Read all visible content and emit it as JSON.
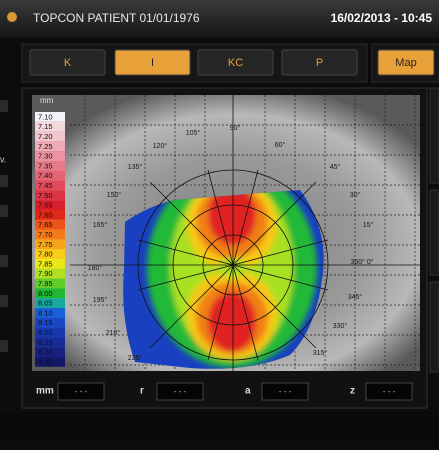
{
  "header": {
    "title": "TOPCON PATIENT 01/01/1976",
    "datetime": "16/02/2013 - 10:45"
  },
  "tabs": [
    "K",
    "I",
    "KC",
    "P"
  ],
  "view_button": "Map",
  "side_label": "v.",
  "scale": {
    "unit": "mm",
    "steps": [
      {
        "label": "7.10",
        "color": "#f4f4f8"
      },
      {
        "label": "7.15",
        "color": "#f4d8dc"
      },
      {
        "label": "7.20",
        "color": "#f2c4cc"
      },
      {
        "label": "7.25",
        "color": "#f0aab6"
      },
      {
        "label": "7.30",
        "color": "#ec92a2"
      },
      {
        "label": "7.35",
        "color": "#e87a8c"
      },
      {
        "label": "7.40",
        "color": "#e46476"
      },
      {
        "label": "7.45",
        "color": "#e04c5e"
      },
      {
        "label": "7.50",
        "color": "#dc3444"
      },
      {
        "label": "7.55",
        "color": "#d8202c"
      },
      {
        "label": "7.60",
        "color": "#e02818"
      },
      {
        "label": "7.65",
        "color": "#ec5418"
      },
      {
        "label": "7.70",
        "color": "#f47c18"
      },
      {
        "label": "7.75",
        "color": "#f8a418"
      },
      {
        "label": "7.80",
        "color": "#f8cc18"
      },
      {
        "label": "7.85",
        "color": "#e8e818"
      },
      {
        "label": "7.90",
        "color": "#b0e020"
      },
      {
        "label": "7.95",
        "color": "#60cc28"
      },
      {
        "label": "8.00",
        "color": "#20b830"
      },
      {
        "label": "8.05",
        "color": "#18a8a0"
      },
      {
        "label": "8.10",
        "color": "#1860d8"
      },
      {
        "label": "8.15",
        "color": "#1848c8"
      },
      {
        "label": "8.20",
        "color": "#1838b0"
      },
      {
        "label": "8.25",
        "color": "#182c98"
      },
      {
        "label": "8.30",
        "color": "#182080"
      },
      {
        "label": "8.35",
        "color": "#141868"
      }
    ]
  },
  "angles": [
    "105°",
    "90°",
    "60°",
    "120°",
    "135°",
    "45°",
    "150°",
    "30°",
    "165°",
    "15°",
    "180°",
    "360° 0°",
    "195°",
    "345°",
    "210°",
    "330°",
    "225°",
    "315°"
  ],
  "fields": [
    {
      "label": "mm",
      "value": "- - -"
    },
    {
      "label": "r",
      "value": "- - -"
    },
    {
      "label": "a",
      "value": "- - -"
    },
    {
      "label": "z",
      "value": "- - -"
    }
  ]
}
